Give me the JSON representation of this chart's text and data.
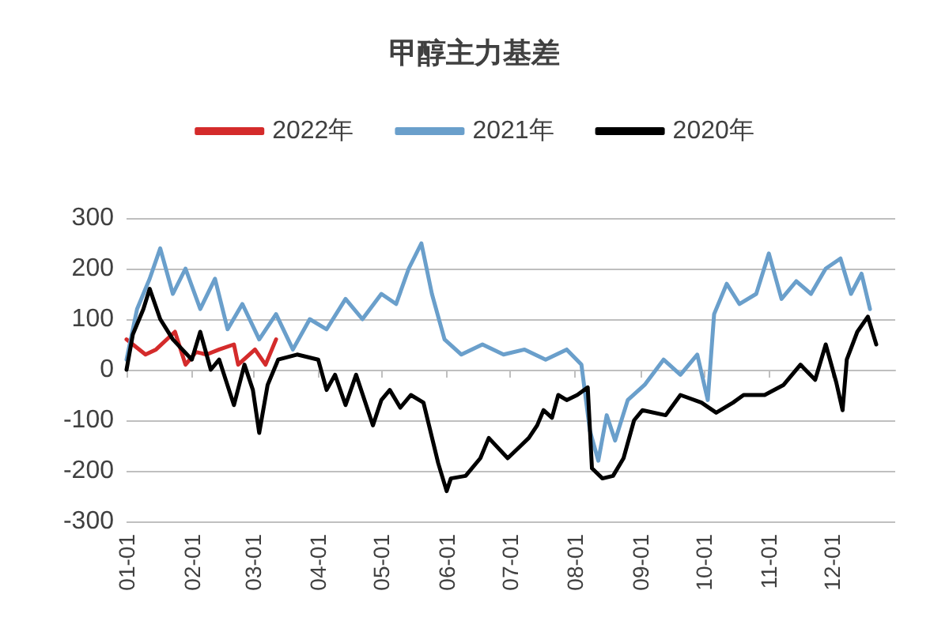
{
  "chart_data": {
    "type": "line",
    "title": "甲醇主力基差",
    "xlim": [
      "--01-01",
      "--12-31"
    ],
    "xticks": [
      {
        "value": "--01-01",
        "label": "01-01"
      },
      {
        "value": "--02-01",
        "label": "02-01"
      },
      {
        "value": "--03-01",
        "label": "03-01"
      },
      {
        "value": "--04-01",
        "label": "04-01"
      },
      {
        "value": "--05-01",
        "label": "05-01"
      },
      {
        "value": "--06-01",
        "label": "06-01"
      },
      {
        "value": "--07-01",
        "label": "07-01"
      },
      {
        "value": "--08-01",
        "label": "08-01"
      },
      {
        "value": "--09-01",
        "label": "09-01"
      },
      {
        "value": "--10-01",
        "label": "10-01"
      },
      {
        "value": "--11-01",
        "label": "11-01"
      },
      {
        "value": "--12-01",
        "label": "12-01"
      }
    ],
    "ylim": [
      -300,
      300
    ],
    "yticks": [
      -300,
      -200,
      -100,
      0,
      100,
      200,
      300
    ],
    "grid": "y",
    "legend": "top",
    "marker": "none",
    "line_style": "solid",
    "series": [
      {
        "name": "2022年",
        "color": "#d42b2b",
        "x": [
          "--01-01",
          "--01-04",
          "--01-10",
          "--01-15",
          "--01-24",
          "--01-29",
          "--02-03",
          "--02-08",
          "--02-14",
          "--02-21",
          "--02-23",
          "--03-02",
          "--03-07",
          "--03-12"
        ],
        "values": [
          60,
          50,
          30,
          40,
          75,
          10,
          35,
          30,
          40,
          50,
          10,
          40,
          10,
          60
        ]
      },
      {
        "name": "2021年",
        "color": "#6a9fcb",
        "x": [
          "--01-01",
          "--01-06",
          "--01-12",
          "--01-17",
          "--01-23",
          "--01-29",
          "--02-05",
          "--02-12",
          "--02-18",
          "--02-25",
          "--03-04",
          "--03-12",
          "--03-20",
          "--03-28",
          "--04-05",
          "--04-14",
          "--04-22",
          "--05-01",
          "--05-08",
          "--05-14",
          "--05-20",
          "--05-25",
          "--05-31",
          "--06-08",
          "--06-18",
          "--06-28",
          "--07-08",
          "--07-18",
          "--07-28",
          "--08-04",
          "--08-08",
          "--08-12",
          "--08-16",
          "--08-20",
          "--08-26",
          "--09-03",
          "--09-12",
          "--09-20",
          "--09-28",
          "--10-03",
          "--10-06",
          "--10-12",
          "--10-18",
          "--10-26",
          "--11-01",
          "--11-07",
          "--11-14",
          "--11-21",
          "--11-28",
          "--12-05",
          "--12-10",
          "--12-15",
          "--12-19"
        ],
        "values": [
          20,
          120,
          180,
          240,
          150,
          200,
          120,
          180,
          80,
          130,
          60,
          110,
          40,
          100,
          80,
          140,
          100,
          150,
          130,
          200,
          250,
          150,
          60,
          30,
          50,
          30,
          40,
          20,
          40,
          10,
          -120,
          -180,
          -90,
          -140,
          -60,
          -30,
          20,
          -10,
          30,
          -60,
          110,
          170,
          130,
          150,
          230,
          140,
          175,
          150,
          200,
          220,
          150,
          190,
          120
        ]
      },
      {
        "name": "2020年",
        "color": "#000000",
        "x": [
          "--01-01",
          "--01-04",
          "--01-09",
          "--01-12",
          "--01-17",
          "--01-23",
          "--02-01",
          "--02-05",
          "--02-10",
          "--02-14",
          "--02-21",
          "--02-26",
          "--03-01",
          "--03-04",
          "--03-08",
          "--03-13",
          "--03-22",
          "--04-01",
          "--04-05",
          "--04-09",
          "--04-14",
          "--04-19",
          "--04-27",
          "--05-01",
          "--05-05",
          "--05-10",
          "--05-15",
          "--05-21",
          "--05-28",
          "--06-01",
          "--06-03",
          "--06-10",
          "--06-17",
          "--06-21",
          "--06-30",
          "--07-05",
          "--07-10",
          "--07-14",
          "--07-17",
          "--07-21",
          "--07-24",
          "--07-28",
          "--08-02",
          "--08-07",
          "--08-09",
          "--08-14",
          "--08-19",
          "--08-24",
          "--08-29",
          "--09-02",
          "--09-13",
          "--09-20",
          "--09-30",
          "--10-07",
          "--10-15",
          "--10-20",
          "--10-30",
          "--11-08",
          "--11-16",
          "--11-23",
          "--11-28",
          "--12-03",
          "--12-06",
          "--12-08",
          "--12-13",
          "--12-18",
          "--12-22"
        ],
        "values": [
          0,
          70,
          120,
          160,
          100,
          60,
          20,
          75,
          0,
          20,
          -70,
          10,
          -40,
          -125,
          -30,
          20,
          30,
          20,
          -40,
          -10,
          -70,
          -10,
          -110,
          -60,
          -40,
          -75,
          -50,
          -65,
          -185,
          -240,
          -215,
          -210,
          -175,
          -135,
          -175,
          -155,
          -135,
          -110,
          -80,
          -95,
          -50,
          -60,
          -50,
          -35,
          -195,
          -215,
          -210,
          -175,
          -100,
          -80,
          -90,
          -50,
          -65,
          -85,
          -65,
          -50,
          -50,
          -30,
          10,
          -20,
          50,
          -25,
          -80,
          20,
          75,
          105,
          50
        ]
      }
    ]
  }
}
